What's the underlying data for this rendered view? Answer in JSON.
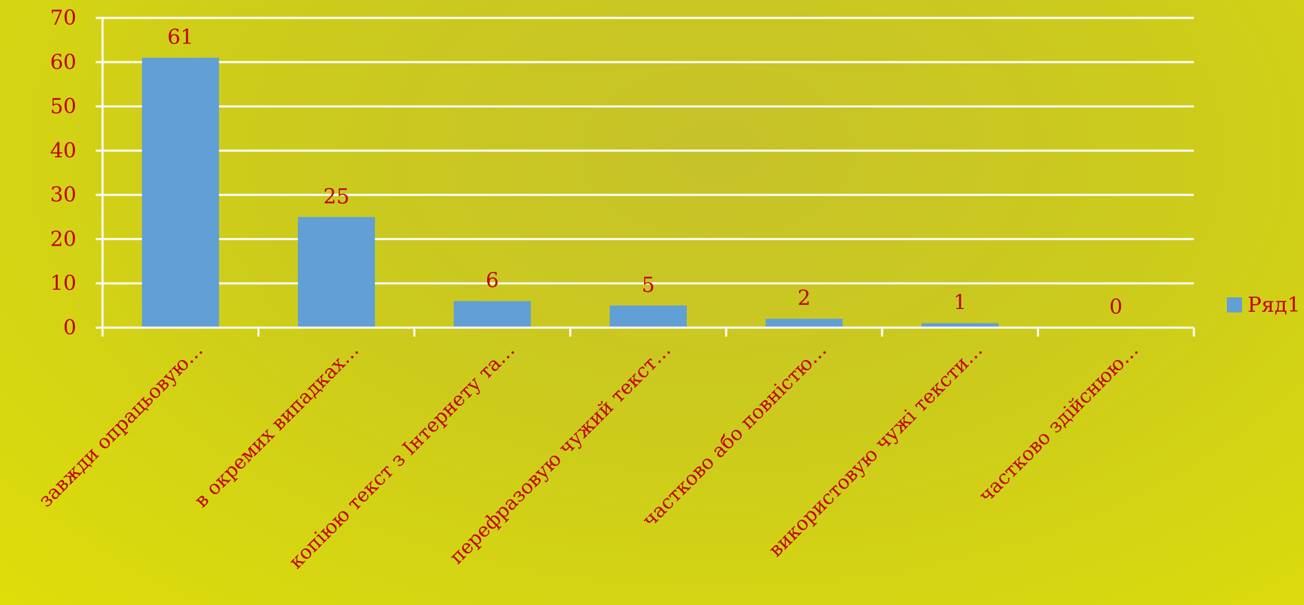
{
  "chart_data": {
    "type": "bar",
    "categories": [
      "завжди опрацьовую…",
      "в окремих випадках…",
      "копіюю текст з Інтернету та…",
      "перефразовую чужий  текст…",
      "частково або повністю…",
      "використовую чужі тексти…",
      "частково здійснюю…"
    ],
    "series": [
      {
        "name": "Ряд1",
        "values": [
          61,
          25,
          6,
          5,
          2,
          1,
          0
        ],
        "color": "#619fd4"
      }
    ],
    "ylim": [
      0,
      70
    ],
    "yticks": [
      0,
      10,
      20,
      30,
      40,
      50,
      60,
      70
    ],
    "grid": true,
    "legend": "right",
    "colors": {
      "text": "#c00000",
      "grid": "#ffffff",
      "bar": "#619fd4"
    }
  }
}
